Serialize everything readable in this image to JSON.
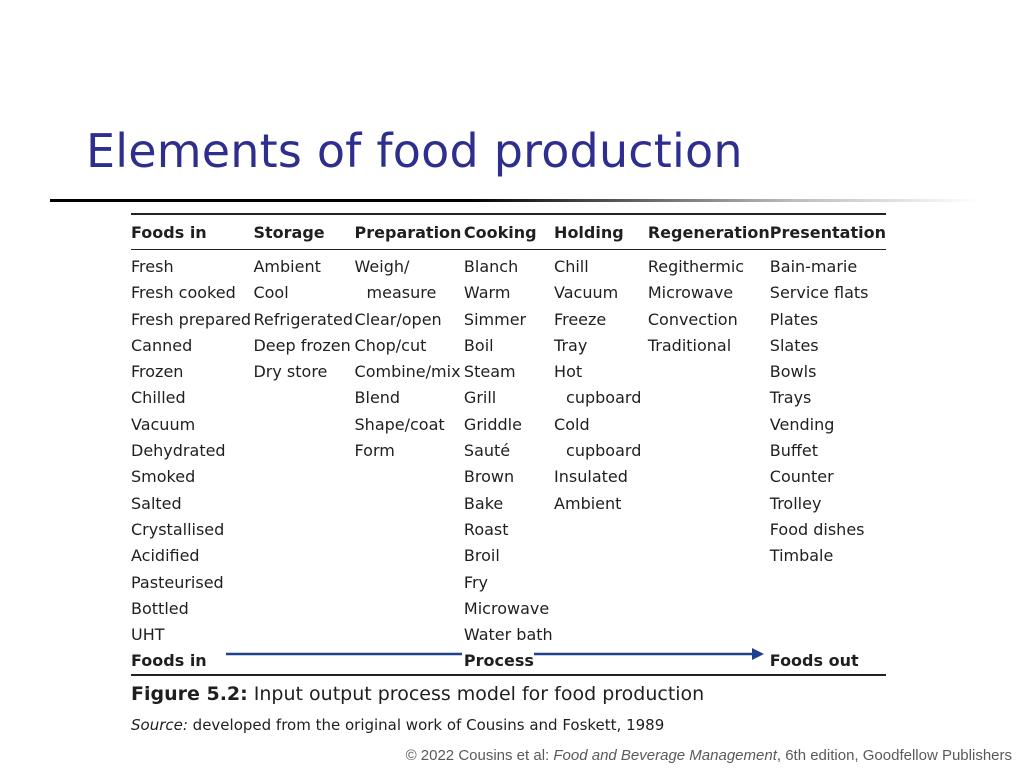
{
  "slide": {
    "title": "Elements of food production"
  },
  "figure": {
    "headers": [
      "Foods in",
      "Storage",
      "Preparation",
      "Cooking",
      "Holding",
      "Regeneration",
      "Presentation"
    ],
    "columns": [
      [
        "Fresh",
        "Fresh cooked",
        "Fresh prepared",
        "Canned",
        "Frozen",
        "Chilled",
        "Vacuum",
        "Dehydrated",
        "Smoked",
        "Salted",
        "Crystallised",
        "Acidified",
        "Pasteurised",
        "Bottled",
        "UHT"
      ],
      [
        "Ambient",
        "Cool",
        "Refrigerated",
        "Deep frozen",
        "Dry store"
      ],
      [
        "Weigh/",
        "measure",
        "Clear/open",
        "Chop/cut",
        "Combine/mix",
        "Blend",
        "Shape/coat",
        "Form"
      ],
      [
        "Blanch",
        "Warm",
        "Simmer",
        "Boil",
        "Steam",
        "Grill",
        "Griddle",
        "Sauté",
        "Brown",
        "Bake",
        "Roast",
        "Broil",
        "Fry",
        "Microwave",
        "Water bath"
      ],
      [
        "Chill",
        "Vacuum",
        "Freeze",
        "Tray",
        "Hot",
        "cupboard",
        "Cold",
        "cupboard",
        "Insulated",
        "Ambient"
      ],
      [
        "Regithermic",
        "Microwave",
        "Convection",
        "Traditional"
      ],
      [
        "Bain-marie",
        "Service flats",
        "Plates",
        "Slates",
        "Bowls",
        "Trays",
        "Vending",
        "Buffet",
        "Counter",
        "Trolley",
        "Food dishes",
        "Timbale"
      ]
    ],
    "flow": {
      "start": "Foods in",
      "middle": "Process",
      "end": "Foods out",
      "arrow_color": "#1f3f8f"
    },
    "caption_label": "Figure 5.2:",
    "caption_text": " Input output process model for food production",
    "source_label": "Source:",
    "source_text": " developed from the original work of Cousins and Foskett, 1989"
  },
  "footer": {
    "prefix": "© 2022 Cousins et al: ",
    "book": "Food and Beverage Management",
    "suffix": ", 6th edition, Goodfellow Publishers"
  },
  "colors": {
    "title": "#2e2e8e",
    "text": "#1f1f1f",
    "footer": "#5a5a5a"
  }
}
